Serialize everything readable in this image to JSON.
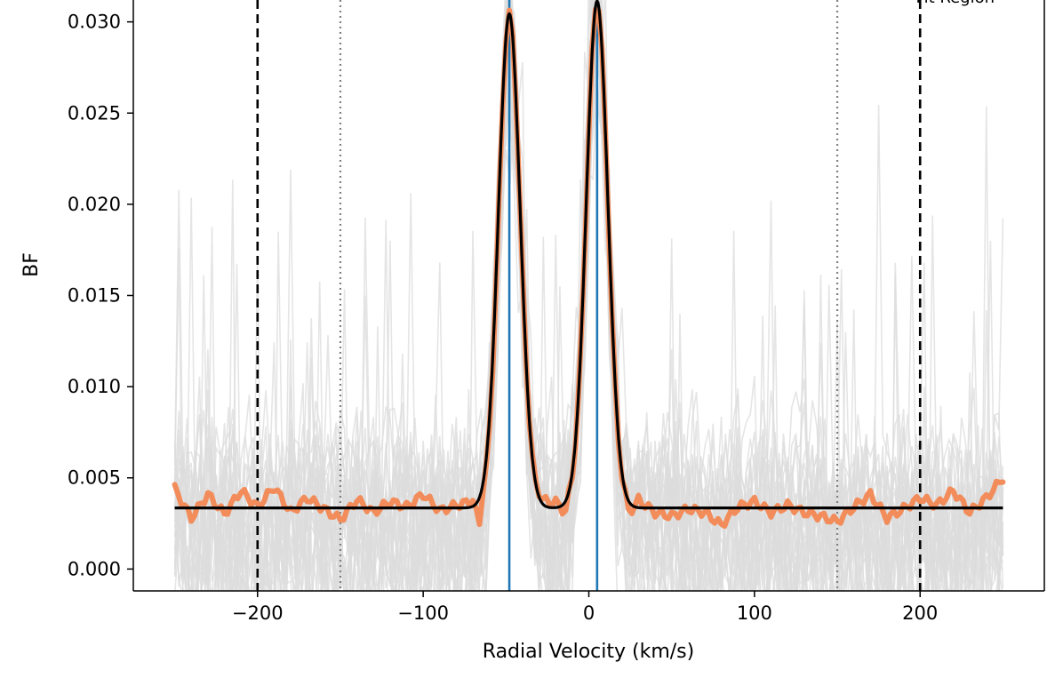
{
  "chart_data": {
    "type": "line",
    "xlabel": "Radial Velocity (km/s)",
    "ylabel": "BF",
    "xlim": [
      -275,
      275
    ],
    "ylim": [
      -0.0012,
      0.0312
    ],
    "grid": false,
    "x_ticks": [
      -200,
      -100,
      0,
      100,
      200
    ],
    "x_tick_labels": [
      "−200",
      "−100",
      "0",
      "100",
      "200"
    ],
    "y_ticks": [
      0.0,
      0.005,
      0.01,
      0.015,
      0.02,
      0.025,
      0.03
    ],
    "y_tick_labels": [
      "0.000",
      "0.005",
      "0.010",
      "0.015",
      "0.020",
      "0.025",
      "0.030"
    ],
    "annotation": "Fit Region",
    "vertical_lines": {
      "fit_region": [
        -200,
        200
      ],
      "inner_bounds": [
        -150,
        150
      ],
      "component_centers": [
        -48,
        5
      ]
    },
    "colors": {
      "individual_bf": "#dcdcdc",
      "smoothed_bf": "#f28c5a",
      "gaussian_fit": "#000000",
      "component_centers": "#1f77b4",
      "inner_bounds": "#808080",
      "fit_region": "#000000"
    },
    "model": {
      "baseline": 0.00335,
      "range": [
        -250,
        250
      ],
      "peaks": [
        {
          "center": -48,
          "amplitude": 0.0271,
          "sigma": 6.5
        },
        {
          "center": 5,
          "amplitude": 0.0278,
          "sigma": 6.5
        }
      ]
    },
    "smoothed_bf": {
      "x": [
        -250,
        -240,
        -230,
        -220,
        -210,
        -200,
        -190,
        -180,
        -170,
        -160,
        -150,
        -140,
        -130,
        -120,
        -110,
        -100,
        -90,
        -80,
        -70,
        -60,
        -48,
        -30,
        -20,
        -10,
        5,
        20,
        30,
        40,
        50,
        60,
        70,
        80,
        90,
        100,
        110,
        120,
        130,
        140,
        150,
        160,
        170,
        180,
        190,
        200,
        210,
        220,
        230,
        240,
        250
      ],
      "y": [
        0.0044,
        0.0028,
        0.0041,
        0.003,
        0.0043,
        0.0034,
        0.0045,
        0.0031,
        0.0039,
        0.0033,
        0.0027,
        0.0038,
        0.0031,
        0.0037,
        0.0034,
        0.0041,
        0.0032,
        0.0035,
        0.0038,
        0.0042,
        0.0305,
        0.0042,
        0.0037,
        0.0042,
        0.0311,
        0.0041,
        0.0038,
        0.0031,
        0.0029,
        0.0033,
        0.0031,
        0.0024,
        0.0034,
        0.0037,
        0.0031,
        0.0035,
        0.0031,
        0.0029,
        0.0026,
        0.0034,
        0.0041,
        0.0028,
        0.0033,
        0.0039,
        0.0035,
        0.0043,
        0.0031,
        0.0039,
        0.005
      ]
    },
    "individual_bf_series_count": 28,
    "individual_bf_noise_level": 0.009
  }
}
